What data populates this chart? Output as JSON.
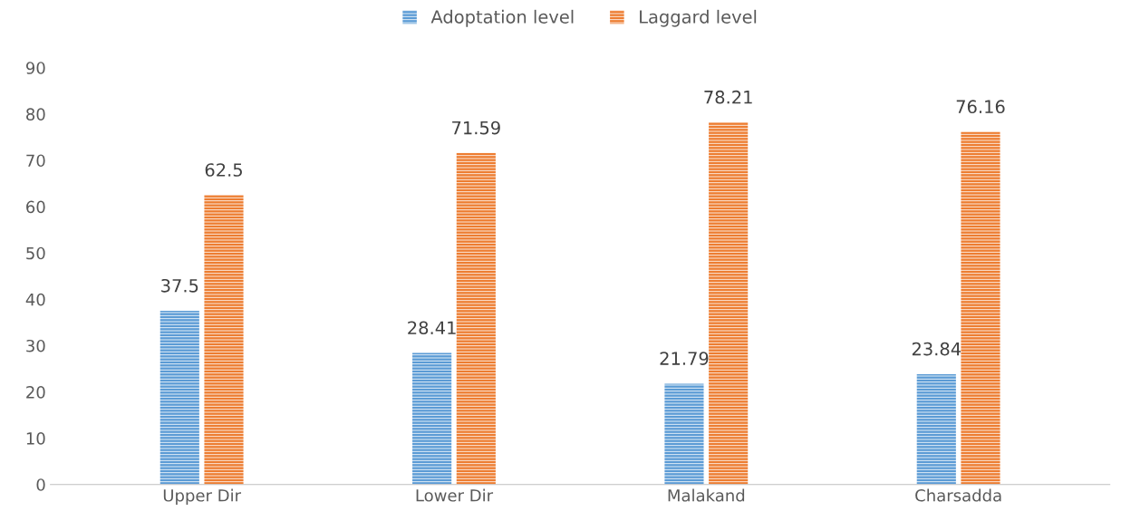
{
  "chart_data": {
    "type": "bar",
    "categories": [
      "Upper Dir",
      "Lower Dir",
      "Malakand",
      "Charsadda"
    ],
    "series": [
      {
        "name": "Adoptation level",
        "color": "#5b9bd5",
        "values": [
          37.5,
          28.41,
          21.79,
          23.84
        ]
      },
      {
        "name": "Laggard level",
        "color": "#ed7d31",
        "values": [
          62.5,
          71.59,
          78.21,
          76.16
        ]
      }
    ],
    "ylim": [
      0,
      90
    ],
    "yticks": [
      0,
      10,
      20,
      30,
      40,
      50,
      60,
      70,
      80,
      90
    ],
    "data_labels": true,
    "legend": "top",
    "grid": false
  }
}
